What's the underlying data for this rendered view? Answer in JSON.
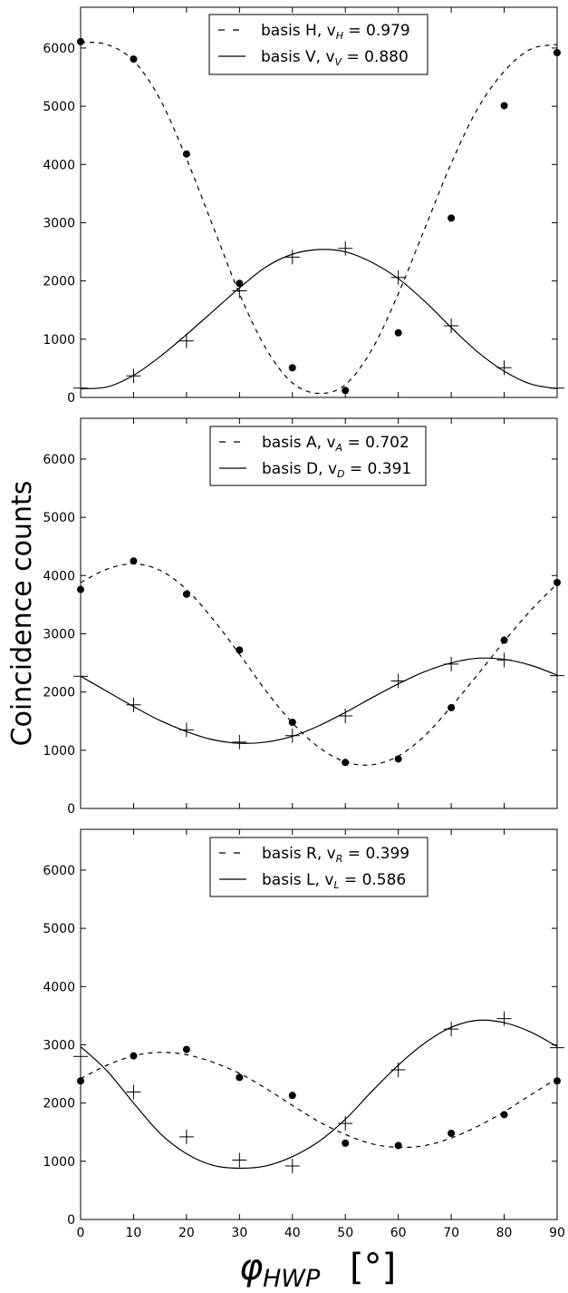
{
  "ylabel": "Coincidence counts",
  "xlabel": {
    "main": "φ",
    "sub": "HWP",
    "unit": "[°]"
  },
  "chart_data": [
    {
      "type": "scatter",
      "xlim": [
        0,
        90
      ],
      "ylim": [
        0,
        6700
      ],
      "x_ticks": [
        0,
        10,
        20,
        30,
        40,
        50,
        60,
        70,
        80,
        90
      ],
      "y_ticks": [
        0,
        1000,
        2000,
        3000,
        4000,
        5000,
        6000
      ],
      "show_x_tick_labels": false,
      "legend_position": "top-center",
      "series": [
        {
          "name": "H",
          "marker": "dot",
          "line": "dashed",
          "legend": {
            "pre": "basis H, v",
            "sub": "H",
            "post": " = 0.979"
          },
          "x": [
            0,
            10,
            20,
            30,
            40,
            50,
            60,
            70,
            80,
            90
          ],
          "y": [
            6110,
            5810,
            4180,
            1960,
            510,
            120,
            1110,
            3080,
            5010,
            5920
          ],
          "fit_x": [
            0,
            5,
            10,
            15,
            20,
            25,
            30,
            35,
            40,
            45,
            50,
            55,
            60,
            65,
            70,
            75,
            80,
            85,
            90
          ],
          "fit_y": [
            6100,
            6060,
            5780,
            5120,
            4100,
            2940,
            1780,
            840,
            250,
            70,
            220,
            820,
            1780,
            2900,
            4020,
            4960,
            5600,
            5980,
            6060
          ]
        },
        {
          "name": "V",
          "marker": "plus",
          "line": "solid",
          "legend": {
            "pre": "basis V, v",
            "sub": "V",
            "post": "  = 0.880"
          },
          "x": [
            0,
            10,
            20,
            30,
            40,
            50,
            60,
            70,
            80,
            90
          ],
          "y": [
            160,
            370,
            970,
            1830,
            2410,
            2560,
            2060,
            1230,
            510,
            160
          ],
          "fit_x": [
            0,
            5,
            10,
            15,
            20,
            25,
            30,
            35,
            40,
            45,
            50,
            55,
            60,
            65,
            70,
            75,
            80,
            85,
            90
          ],
          "fit_y": [
            150,
            180,
            380,
            700,
            1080,
            1480,
            1880,
            2240,
            2460,
            2540,
            2500,
            2320,
            2040,
            1650,
            1200,
            780,
            450,
            230,
            150
          ]
        }
      ]
    },
    {
      "type": "scatter",
      "xlim": [
        0,
        90
      ],
      "ylim": [
        0,
        6700
      ],
      "x_ticks": [
        0,
        10,
        20,
        30,
        40,
        50,
        60,
        70,
        80,
        90
      ],
      "y_ticks": [
        0,
        1000,
        2000,
        3000,
        4000,
        5000,
        6000
      ],
      "show_x_tick_labels": false,
      "legend_position": "top-center",
      "series": [
        {
          "name": "A",
          "marker": "dot",
          "line": "dashed",
          "legend": {
            "pre": "basis A, v",
            "sub": "A",
            "post": " = 0.702"
          },
          "x": [
            0,
            10,
            20,
            30,
            40,
            50,
            60,
            70,
            80,
            90
          ],
          "y": [
            3760,
            4250,
            3680,
            2720,
            1480,
            790,
            850,
            1730,
            2890,
            3880
          ],
          "fit_x": [
            0,
            5,
            10,
            15,
            20,
            25,
            30,
            35,
            40,
            45,
            50,
            55,
            60,
            65,
            70,
            75,
            80,
            85,
            90
          ],
          "fit_y": [
            3880,
            4110,
            4200,
            4090,
            3760,
            3250,
            2650,
            2020,
            1470,
            1050,
            800,
            750,
            900,
            1250,
            1750,
            2300,
            2870,
            3400,
            3860
          ]
        },
        {
          "name": "D",
          "marker": "plus",
          "line": "solid",
          "legend": {
            "pre": "basis D, v",
            "sub": "D",
            "post": " = 0.391"
          },
          "x": [
            0,
            10,
            20,
            30,
            40,
            50,
            60,
            70,
            80,
            90
          ],
          "y": [
            2270,
            1780,
            1350,
            1140,
            1250,
            1590,
            2190,
            2480,
            2550,
            2280
          ],
          "fit_x": [
            0,
            5,
            10,
            15,
            20,
            25,
            30,
            35,
            40,
            45,
            50,
            55,
            60,
            65,
            70,
            75,
            80,
            85,
            90
          ],
          "fit_y": [
            2270,
            2010,
            1750,
            1510,
            1320,
            1180,
            1120,
            1140,
            1240,
            1420,
            1650,
            1900,
            2140,
            2350,
            2500,
            2580,
            2560,
            2460,
            2290
          ]
        }
      ]
    },
    {
      "type": "scatter",
      "xlim": [
        0,
        90
      ],
      "ylim": [
        0,
        6700
      ],
      "x_ticks": [
        0,
        10,
        20,
        30,
        40,
        50,
        60,
        70,
        80,
        90
      ],
      "y_ticks": [
        0,
        1000,
        2000,
        3000,
        4000,
        5000,
        6000
      ],
      "x_tick_labels": [
        "0",
        "10",
        "20",
        "30",
        "40",
        "50",
        "60",
        "70",
        "80",
        "90"
      ],
      "show_x_tick_labels": true,
      "legend_position": "top-center",
      "series": [
        {
          "name": "R",
          "marker": "dot",
          "line": "dashed",
          "legend": {
            "pre": "basis R, v",
            "sub": "R",
            "post": " = 0.399"
          },
          "x": [
            0,
            10,
            20,
            30,
            40,
            50,
            60,
            70,
            80,
            90
          ],
          "y": [
            2380,
            2810,
            2920,
            2440,
            2130,
            1310,
            1270,
            1480,
            1800,
            2380
          ],
          "fit_x": [
            0,
            5,
            10,
            15,
            20,
            25,
            30,
            35,
            40,
            45,
            50,
            55,
            60,
            65,
            70,
            75,
            80,
            85,
            90
          ],
          "fit_y": [
            2420,
            2650,
            2810,
            2870,
            2830,
            2700,
            2510,
            2250,
            1960,
            1680,
            1460,
            1300,
            1240,
            1270,
            1400,
            1600,
            1850,
            2140,
            2420
          ]
        },
        {
          "name": "L",
          "marker": "plus",
          "line": "solid",
          "legend": {
            "pre": "basis L, v",
            "sub": "L",
            "post": " = 0.586"
          },
          "x": [
            0,
            10,
            20,
            30,
            40,
            50,
            60,
            70,
            80,
            90
          ],
          "y": [
            2800,
            2190,
            1420,
            1020,
            920,
            1650,
            2570,
            3270,
            3450,
            2950
          ],
          "fit_x": [
            0,
            5,
            10,
            15,
            20,
            25,
            30,
            35,
            40,
            45,
            50,
            55,
            60,
            65,
            70,
            75,
            80,
            85,
            90
          ],
          "fit_y": [
            2970,
            2550,
            2000,
            1480,
            1130,
            930,
            880,
            920,
            1080,
            1340,
            1720,
            2200,
            2650,
            3030,
            3300,
            3420,
            3380,
            3220,
            2970
          ]
        }
      ]
    }
  ]
}
